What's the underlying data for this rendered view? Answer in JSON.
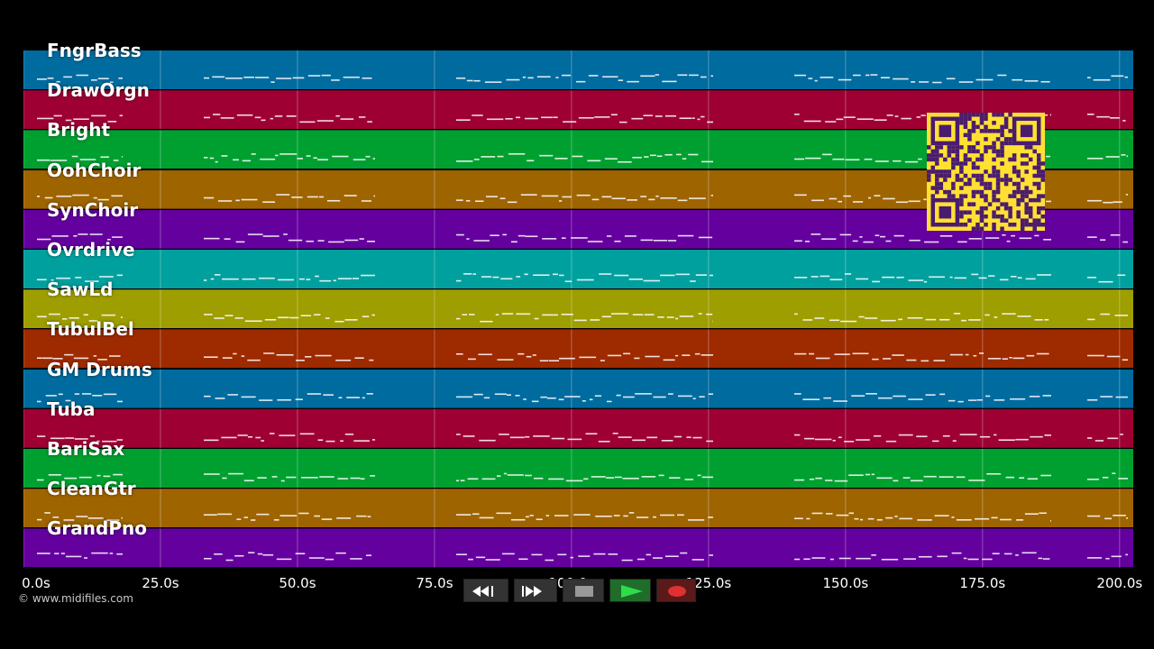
{
  "tracks": [
    {
      "name": "FngrBass",
      "color": "#006b9e"
    },
    {
      "name": "DrawOrgn",
      "color": "#9e0034"
    },
    {
      "name": "Bright",
      "color": "#00a030"
    },
    {
      "name": "OohChoir",
      "color": "#9e6400"
    },
    {
      "name": "SynChoir",
      "color": "#64009e"
    },
    {
      "name": "Ovrdrive",
      "color": "#00a09e"
    },
    {
      "name": "SawLd",
      "color": "#9e9e00"
    },
    {
      "name": "TubulBel",
      "color": "#9e2a00"
    },
    {
      "name": "GM Drums",
      "color": "#006b9e"
    },
    {
      "name": "Tuba",
      "color": "#9e0034"
    },
    {
      "name": "BariSax",
      "color": "#00a030"
    },
    {
      "name": "CleanGtr",
      "color": "#9e6400"
    },
    {
      "name": "GrandPno",
      "color": "#64009e"
    }
  ],
  "timeline": {
    "ticks": [
      "0.0s",
      "25.0s",
      "50.0s",
      "75.0s",
      "100.0s",
      "125.0s",
      "150.0s",
      "175.0s",
      "200.0s"
    ],
    "max_seconds": 202.5
  },
  "copyright": "© www.midifiles.com",
  "controls": {
    "rewind": "rewind-icon",
    "fast_forward": "fast-forward-icon",
    "stop": "stop-icon",
    "play": "play-icon",
    "record": "record-icon"
  },
  "qr_icon": "qr-code-icon"
}
